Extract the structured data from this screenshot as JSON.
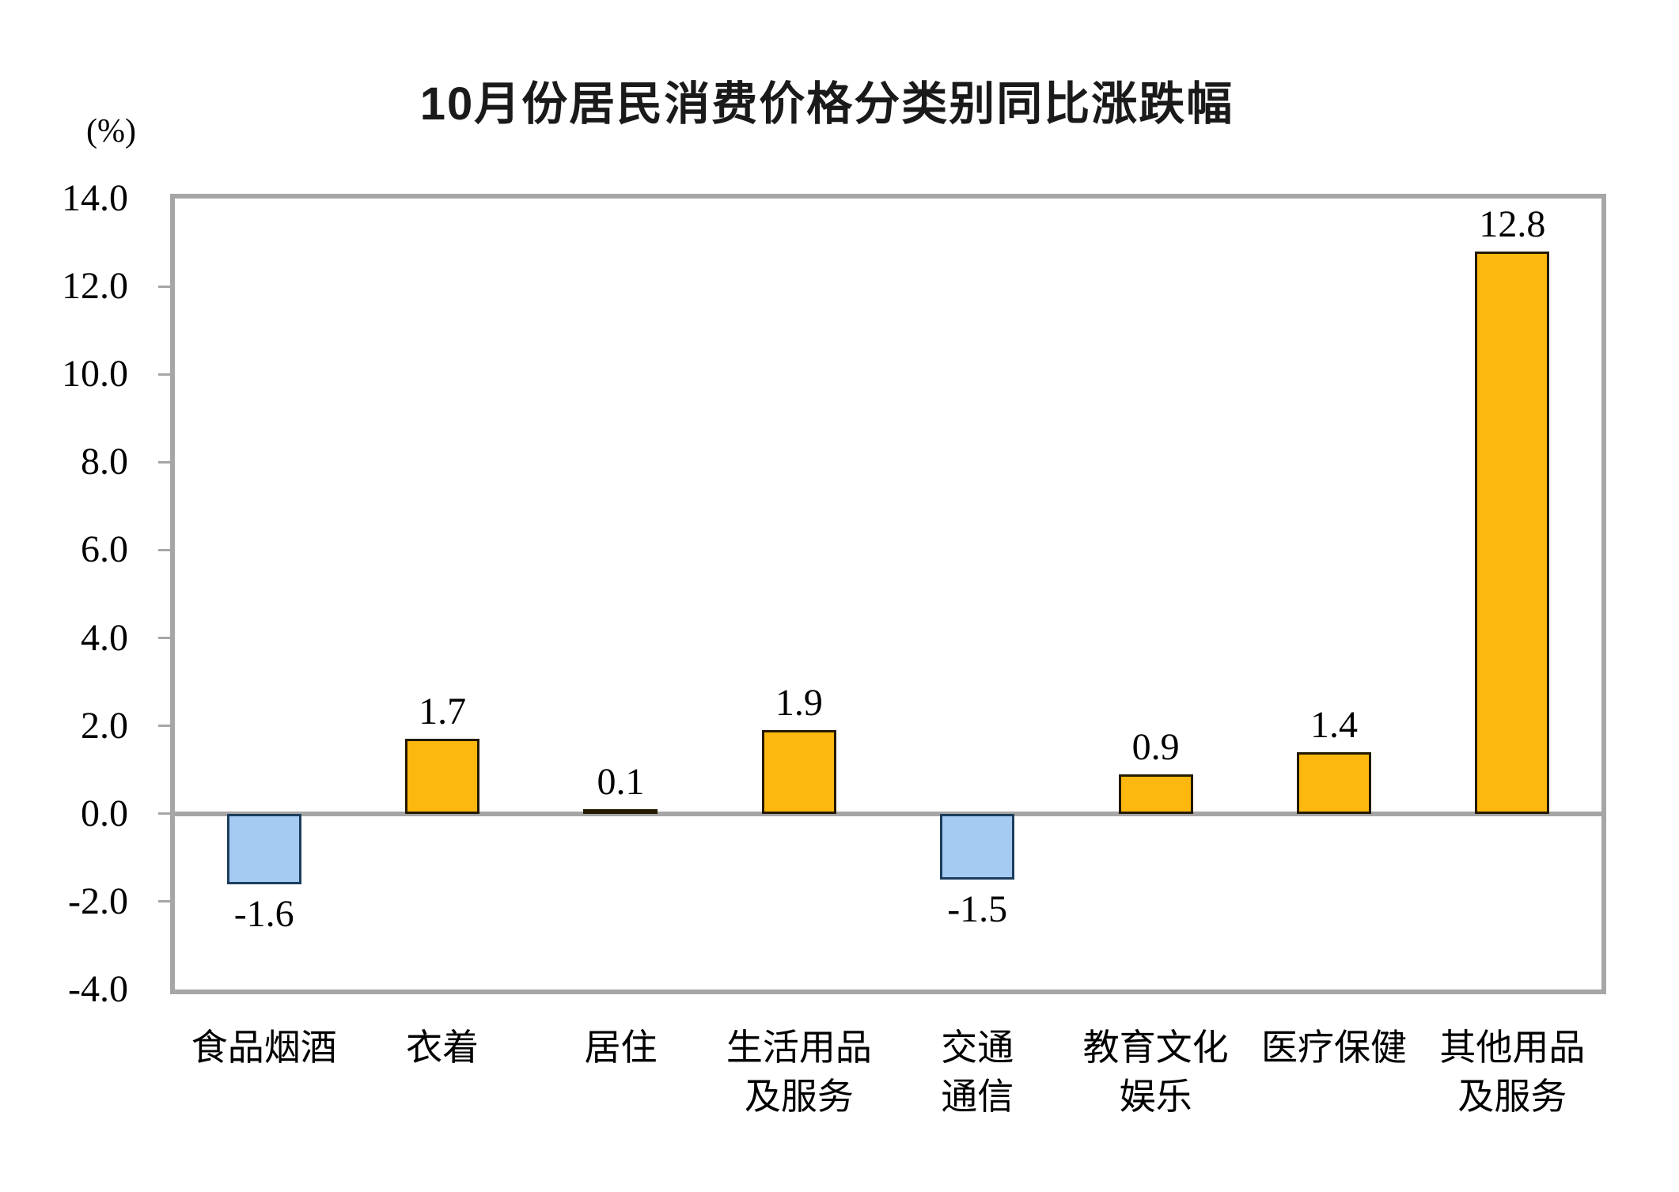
{
  "title": "10月份居民消费价格分类别同比涨跌幅",
  "y_unit_label": "(%)",
  "chart_data": {
    "type": "bar",
    "title": "10月份居民消费价格分类别同比涨跌幅",
    "xlabel": "",
    "ylabel": "(%)",
    "categories": [
      "食品烟酒",
      "衣着",
      "居住",
      "生活用品及服务",
      "交通通信",
      "教育文化娱乐",
      "医疗保健",
      "其他用品及服务"
    ],
    "categories_display": [
      [
        "食品烟酒"
      ],
      [
        "衣着"
      ],
      [
        "居住"
      ],
      [
        "生活用品",
        "及服务"
      ],
      [
        "交通",
        "通信"
      ],
      [
        "教育文化",
        "娱乐"
      ],
      [
        "医疗保健"
      ],
      [
        "其他用品",
        "及服务"
      ]
    ],
    "values": [
      -1.6,
      1.7,
      0.1,
      1.9,
      -1.5,
      0.9,
      1.4,
      12.8
    ],
    "value_labels": [
      "-1.6",
      "1.7",
      "0.1",
      "1.9",
      "-1.5",
      "0.9",
      "1.4",
      "12.8"
    ],
    "ylim": [
      -4.0,
      14.0
    ],
    "ytick_step": 2.0,
    "ytick_labels": [
      "14.0",
      "12.0",
      "10.0",
      "8.0",
      "6.0",
      "4.0",
      "2.0",
      "0.0",
      "-2.0",
      "-4.0"
    ],
    "ytick_values": [
      14.0,
      12.0,
      10.0,
      8.0,
      6.0,
      4.0,
      2.0,
      0.0,
      -2.0,
      -4.0
    ],
    "grid": false,
    "legend": null,
    "zero_line": true,
    "colors": {
      "bar_positive": "#FCB80E",
      "bar_positive_border": "#241A00",
      "bar_negative": "#A5CBF3",
      "bar_negative_border": "#1C3D5C",
      "axis_frame": "#A6A6A6",
      "zero_line": "#A6A6A6",
      "text": "#000000"
    }
  }
}
